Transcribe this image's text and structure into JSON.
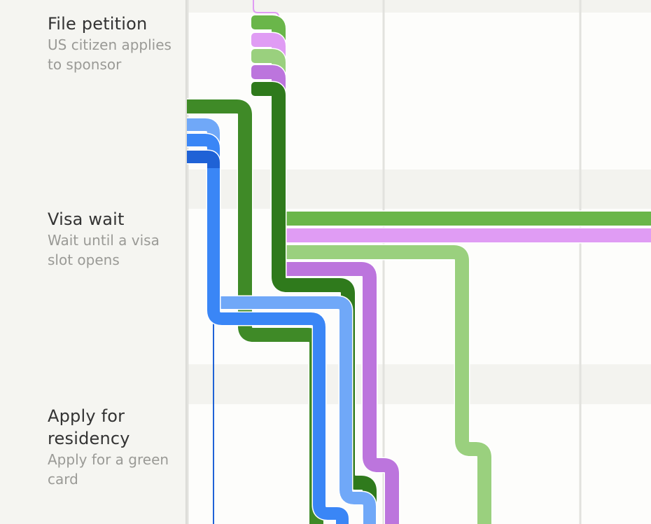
{
  "stages": [
    {
      "title": "File petition",
      "subtitle": "US citizen applies to sponsor"
    },
    {
      "title": "Visa wait",
      "subtitle": "Wait until a visa slot opens"
    },
    {
      "title": "Apply for residency",
      "subtitle": "Apply for a green card"
    }
  ],
  "colors": {
    "background": "#f7f7f4",
    "panel": "#fdfdfb",
    "band": "#f3f3ef",
    "gridline": "#e2e2de",
    "green_mid": "#6ab64a",
    "green_dark": "#3f8a27",
    "green_darker": "#2f7a1c",
    "green_light": "#9ad07e",
    "purple_light": "#e09cf4",
    "purple_mid": "#bc75dd",
    "blue_light": "#70a8f8",
    "blue_mid": "#3a86f6",
    "blue_dark": "#1f62d6",
    "text_title": "#333333",
    "text_sub": "#9a9a96"
  }
}
